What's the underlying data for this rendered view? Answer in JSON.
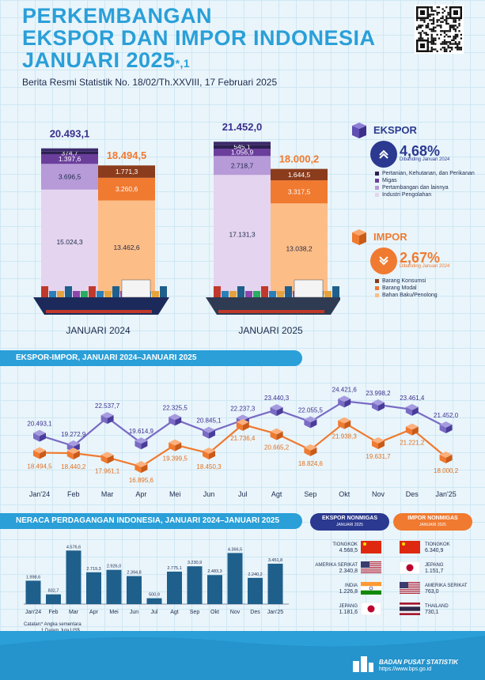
{
  "header": {
    "title_line1": "PERKEMBANGAN",
    "title_line2": "EKSPOR DAN IMPOR INDONESIA",
    "title_line3": "JANUARI 2025",
    "title_sup": "*,1",
    "subtitle": "Berita Resmi Statistik No. 18/02/Th.XXVIII, 17 Februari 2025"
  },
  "colors": {
    "accent": "#2a9fd8",
    "export_line": "#7a6bc4",
    "import_line": "#f07a30",
    "balance_bar": "#1f5f8b",
    "ekspor_navy": "#2b3990"
  },
  "summary": {
    "ekspor_label": "EKSPOR",
    "ekspor_growth": "4,68%",
    "ekspor_note": "Dibanding Januari 2024",
    "impor_label": "IMPOR",
    "impor_growth": "2,67%",
    "impor_note": "Dibanding Januari 2024",
    "ekspor_legend": [
      {
        "label": "Pertanian, Kehutanan, dan Perikanan",
        "color": "#2c1f4f"
      },
      {
        "label": "Migas",
        "color": "#6b3e9c"
      },
      {
        "label": "Pertambangan dan lainnya",
        "color": "#b79ad8"
      },
      {
        "label": "Industri Pengolahan",
        "color": "#e5d4ef"
      }
    ],
    "impor_legend": [
      {
        "label": "Barang Konsumsi",
        "color": "#8b3c1c"
      },
      {
        "label": "Barang Modal",
        "color": "#f07a30"
      },
      {
        "label": "Bahan Baku/Penolong",
        "color": "#fdbd86"
      }
    ]
  },
  "chart_data": [
    {
      "type": "bar",
      "subtype": "stacked",
      "categories": [
        "JANUARI 2024",
        "JANUARI 2025"
      ],
      "ekspor": {
        "total": [
          "20.493,1",
          "21.452,0"
        ],
        "total_values": [
          20493.1,
          21452.0
        ],
        "series": [
          {
            "name": "Industri Pengolahan",
            "values": [
              15024.3,
              17131.3
            ],
            "labels": [
              "15.024,3",
              "17.131,3"
            ]
          },
          {
            "name": "Pertambangan dan lainnya",
            "values": [
              3696.5,
              2718.7
            ],
            "labels": [
              "3.696,5",
              "2.718,7"
            ]
          },
          {
            "name": "Migas",
            "values": [
              1397.6,
              1056.9
            ],
            "labels": [
              "1.397,6",
              "1.056,9"
            ]
          },
          {
            "name": "Pertanian, Kehutanan, dan Perikanan",
            "values": [
              374.7,
              545.1
            ],
            "labels": [
              "374,7",
              "545,1"
            ]
          }
        ]
      },
      "impor": {
        "total": [
          "18.494,5",
          "18.000,2"
        ],
        "total_values": [
          18494.5,
          18000.2
        ],
        "series": [
          {
            "name": "Bahan Baku/Penolong",
            "values": [
              13462.6,
              13038.2
            ],
            "labels": [
              "13.462,6",
              "13.038,2"
            ]
          },
          {
            "name": "Barang Modal",
            "values": [
              3260.6,
              3317.5
            ],
            "labels": [
              "3.260,6",
              "3.317,5"
            ]
          },
          {
            "name": "Barang Konsumsi",
            "values": [
              1771.3,
              1644.5
            ],
            "labels": [
              "1.771,3",
              "1.644,5"
            ]
          }
        ]
      }
    },
    {
      "type": "line",
      "title": "EKSPOR-IMPOR, JANUARI 2024–JANUARI 2025",
      "categories": [
        "Jan'24",
        "Feb",
        "Mar",
        "Apr",
        "Mei",
        "Jun",
        "Jul",
        "Agt",
        "Sep",
        "Okt",
        "Nov",
        "Des",
        "Jan'25"
      ],
      "series": [
        {
          "name": "Ekspor",
          "values": [
            20493.1,
            19272.9,
            22537.7,
            19614.9,
            22325.5,
            20845.1,
            22237.3,
            23440.3,
            22055.5,
            24421.6,
            23998.2,
            23461.4,
            21452.0
          ],
          "labels": [
            "20.493,1",
            "19.272,9",
            "22.537,7",
            "19.614,9",
            "22.325,5",
            "20.845,1",
            "22.237,3",
            "23.440,3",
            "22.055,5",
            "24.421,6",
            "23.998,2",
            "23.461,4",
            "21.452,0"
          ]
        },
        {
          "name": "Impor",
          "values": [
            18494.5,
            18440.2,
            17961.1,
            16895.6,
            19399.5,
            18450.3,
            21736.4,
            20665.2,
            18824.6,
            21938.3,
            19631.7,
            21221.2,
            18000.2
          ],
          "labels": [
            "18.494,5",
            "18.440,2",
            "17.961,1",
            "16.895,6",
            "19.399,5",
            "18.450,3",
            "21.736,4",
            "20.665,2",
            "18.824,6",
            "21.938,3",
            "19.631,7",
            "21.221,2",
            "18.000,2"
          ]
        }
      ]
    },
    {
      "type": "bar",
      "title": "NERACA PERDAGANGAN INDONESIA, JANUARI 2024–JANUARI 2025",
      "categories": [
        "Jan'24",
        "Feb",
        "Mar",
        "Apr",
        "Mei",
        "Jun",
        "Jul",
        "Agt",
        "Sep",
        "Okt",
        "Nov",
        "Des",
        "Jan'25"
      ],
      "values": [
        1998.6,
        832.7,
        4576.6,
        2719.3,
        2926.0,
        2394.8,
        500.9,
        2775.1,
        3230.9,
        2483.3,
        4366.5,
        2240.2,
        3451.8
      ],
      "labels": [
        "1.998,6",
        "832,7",
        "4.576,6",
        "2.719,3",
        "2.926,0",
        "2.394,8",
        "500,9",
        "2.775,1",
        "3.230,9",
        "2.483,3",
        "4.366,5",
        "2.240,2",
        "3.451,8"
      ]
    }
  ],
  "partners": {
    "ekspor_title": "EKSPOR NONMIGAS",
    "ekspor_sub": "JANUARI 2025",
    "impor_title": "IMPOR NONMIGAS",
    "impor_sub": "JANUARI 2025",
    "ekspor": [
      {
        "country": "TIONGKOK",
        "value": "4.568,5",
        "flag": "china"
      },
      {
        "country": "AMERIKA SERIKAT",
        "value": "2.340,8",
        "flag": "usa"
      },
      {
        "country": "INDIA",
        "value": "1.226,8",
        "flag": "india"
      },
      {
        "country": "JEPANG",
        "value": "1.181,6",
        "flag": "japan"
      }
    ],
    "impor": [
      {
        "country": "TIONGKOK",
        "value": "6.340,9",
        "flag": "china"
      },
      {
        "country": "JEPANG",
        "value": "1.151,7",
        "flag": "japan"
      },
      {
        "country": "AMERIKA SERIKAT",
        "value": "763,0",
        "flag": "usa"
      },
      {
        "country": "THAILAND",
        "value": "730,1",
        "flag": "thailand"
      }
    ]
  },
  "notes": {
    "label": "Catatan:",
    "note1": "* Angka sementara",
    "note2": "1 Dalam Juta US$"
  },
  "footer": {
    "org": "BADAN PUSAT STATISTIK",
    "url": "https://www.bps.go.id"
  }
}
